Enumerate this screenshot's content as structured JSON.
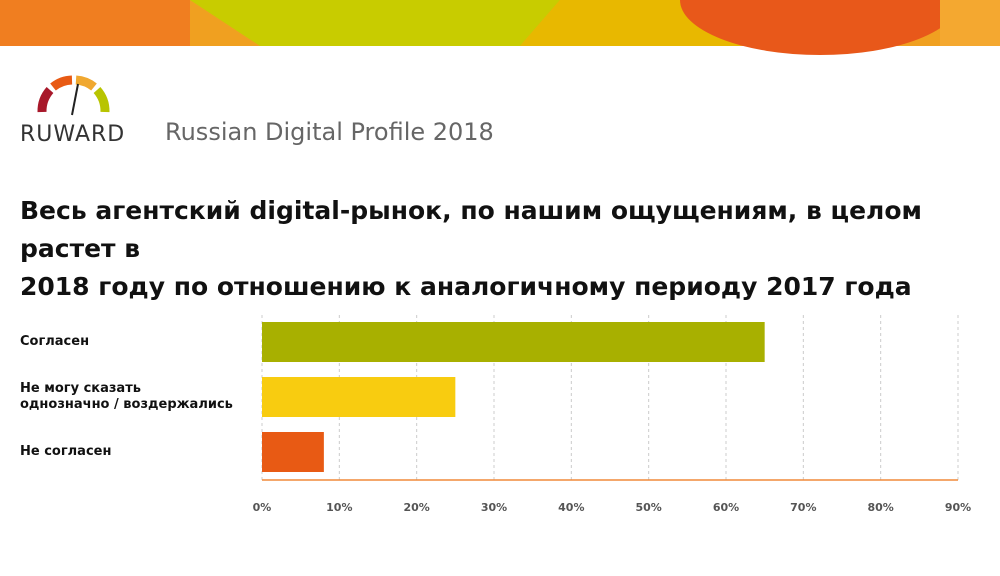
{
  "brand": "RUWARD",
  "subtitle": "Russian Digital Profile 2018",
  "chart_data": {
    "type": "bar",
    "orientation": "horizontal",
    "title": "Весь агентский digital-рынок, по нашим ощущениям, в целом растет в\n2018 году по отношению к аналогичному периоду 2017 года",
    "categories": [
      "Согласен",
      "Не могу сказать\nоднозначно / воздержались",
      "Не согласен"
    ],
    "values": [
      65,
      25,
      8
    ],
    "colors": [
      "#a8b000",
      "#f8cc10",
      "#e85a14"
    ],
    "xlim": [
      0,
      90
    ],
    "xticks": [
      {
        "value": 0,
        "label": "0%"
      },
      {
        "value": 10,
        "label": "10%"
      },
      {
        "value": 20,
        "label": "20%"
      },
      {
        "value": 30,
        "label": "30%"
      },
      {
        "value": 40,
        "label": "40%"
      },
      {
        "value": 50,
        "label": "50%"
      },
      {
        "value": 60,
        "label": "60%"
      },
      {
        "value": 70,
        "label": "70%"
      },
      {
        "value": 80,
        "label": "80%"
      },
      {
        "value": 90,
        "label": "90%"
      }
    ],
    "grid": true
  }
}
